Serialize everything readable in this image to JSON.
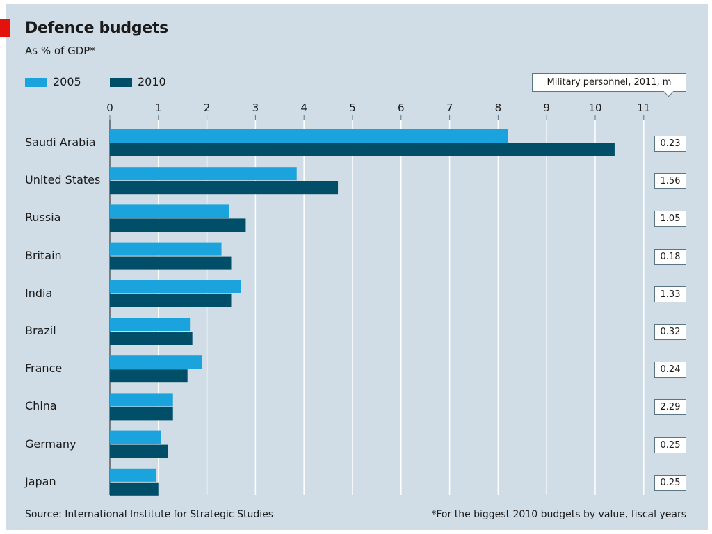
{
  "chart_data": {
    "type": "bar",
    "orientation": "horizontal",
    "title": "Defence budgets",
    "subtitle": "As % of GDP*",
    "categories": [
      "Saudi Arabia",
      "United States",
      "Russia",
      "Britain",
      "India",
      "Brazil",
      "France",
      "China",
      "Germany",
      "Japan"
    ],
    "series": [
      {
        "name": "2005",
        "color": "#1aa3dc",
        "values": [
          8.2,
          3.85,
          2.45,
          2.3,
          2.7,
          1.65,
          1.9,
          1.3,
          1.05,
          0.95
        ]
      },
      {
        "name": "2010",
        "color": "#014e68",
        "values": [
          10.4,
          4.7,
          2.8,
          2.5,
          2.5,
          1.7,
          1.6,
          1.3,
          1.2,
          1.0
        ]
      }
    ],
    "xlim": [
      0,
      11
    ],
    "xticks": [
      "0",
      "1",
      "2",
      "3",
      "4",
      "5",
      "6",
      "7",
      "8",
      "9",
      "10",
      "11"
    ],
    "grid": true,
    "legend": "top-left",
    "side_column": {
      "label": "Military personnel, 2011, m",
      "values": [
        "0.23",
        "1.56",
        "1.05",
        "0.18",
        "1.33",
        "0.32",
        "0.24",
        "2.29",
        "0.25",
        "0.25"
      ]
    },
    "source": "Source: International Institute for Strategic Studies",
    "footnote": "*For the biggest 2010 budgets by value, fiscal years"
  },
  "colors": {
    "background": "#d0dde6",
    "gridline": "#ffffff",
    "accent": "#e3120b"
  }
}
